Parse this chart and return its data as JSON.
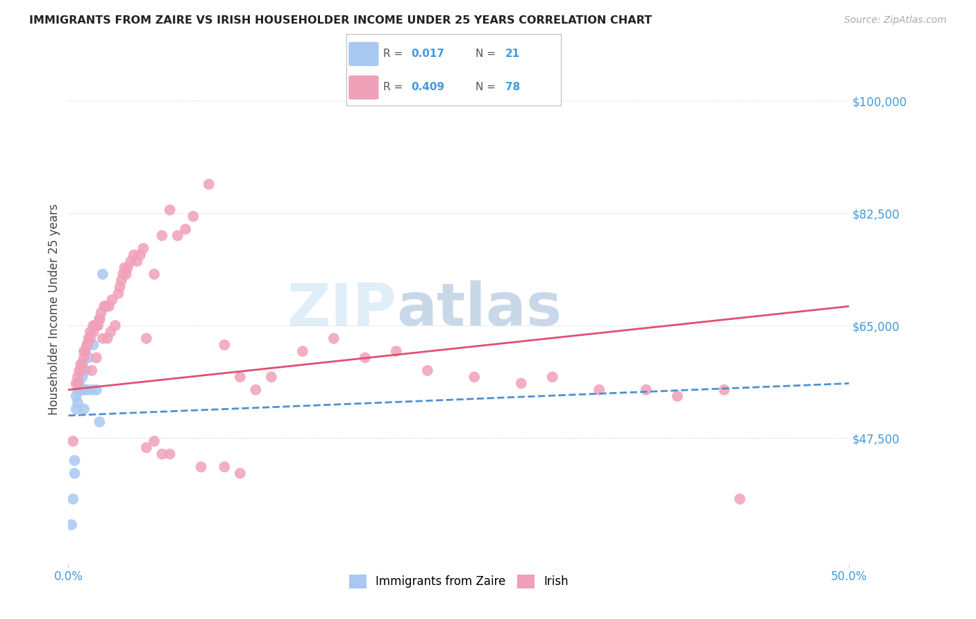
{
  "title": "IMMIGRANTS FROM ZAIRE VS IRISH HOUSEHOLDER INCOME UNDER 25 YEARS CORRELATION CHART",
  "source": "Source: ZipAtlas.com",
  "ylabel": "Householder Income Under 25 years",
  "right_ytick_labels": [
    "$100,000",
    "$82,500",
    "$65,000",
    "$47,500"
  ],
  "right_ytick_values": [
    100000,
    82500,
    65000,
    47500
  ],
  "ylim": [
    28000,
    107000
  ],
  "xlim": [
    0.0,
    0.5
  ],
  "color_blue": "#a8c8f0",
  "color_pink": "#f0a0b8",
  "color_blue_line": "#5090d0",
  "color_pink_line": "#e05070",
  "color_axis_text": "#4499dd",
  "watermark_zip": "ZIP",
  "watermark_atlas": "atlas",
  "legend_label_blue": "Immigrants from Zaire",
  "legend_label_pink": "Irish",
  "blue_line_x": [
    0.0,
    0.5
  ],
  "blue_line_y": [
    51000,
    56000
  ],
  "pink_line_x": [
    0.0,
    0.5
  ],
  "pink_line_y": [
    55000,
    68000
  ],
  "blue_points_x": [
    0.002,
    0.003,
    0.004,
    0.004,
    0.005,
    0.005,
    0.006,
    0.006,
    0.007,
    0.008,
    0.009,
    0.01,
    0.01,
    0.011,
    0.012,
    0.013,
    0.015,
    0.016,
    0.018,
    0.02,
    0.022
  ],
  "blue_points_y": [
    34000,
    38000,
    42000,
    44000,
    52000,
    54000,
    53000,
    55000,
    56000,
    55000,
    57000,
    52000,
    55000,
    58000,
    55000,
    60000,
    55000,
    62000,
    55000,
    50000,
    73000
  ],
  "pink_points_x": [
    0.003,
    0.005,
    0.006,
    0.006,
    0.007,
    0.008,
    0.008,
    0.009,
    0.01,
    0.01,
    0.011,
    0.012,
    0.012,
    0.013,
    0.014,
    0.014,
    0.015,
    0.016,
    0.016,
    0.017,
    0.018,
    0.018,
    0.019,
    0.02,
    0.02,
    0.021,
    0.022,
    0.023,
    0.024,
    0.025,
    0.026,
    0.027,
    0.028,
    0.03,
    0.032,
    0.033,
    0.034,
    0.035,
    0.036,
    0.037,
    0.038,
    0.04,
    0.042,
    0.044,
    0.046,
    0.048,
    0.05,
    0.055,
    0.06,
    0.065,
    0.07,
    0.075,
    0.08,
    0.09,
    0.1,
    0.11,
    0.12,
    0.13,
    0.15,
    0.17,
    0.19,
    0.21,
    0.23,
    0.26,
    0.29,
    0.31,
    0.34,
    0.37,
    0.39,
    0.42,
    0.05,
    0.055,
    0.06,
    0.065,
    0.085,
    0.1,
    0.11,
    0.43
  ],
  "pink_points_y": [
    47000,
    56000,
    56000,
    57000,
    58000,
    58000,
    59000,
    59000,
    60000,
    61000,
    61000,
    62000,
    62000,
    63000,
    63000,
    64000,
    58000,
    64000,
    65000,
    65000,
    60000,
    65000,
    65000,
    66000,
    66000,
    67000,
    63000,
    68000,
    68000,
    63000,
    68000,
    64000,
    69000,
    65000,
    70000,
    71000,
    72000,
    73000,
    74000,
    73000,
    74000,
    75000,
    76000,
    75000,
    76000,
    77000,
    63000,
    73000,
    79000,
    83000,
    79000,
    80000,
    82000,
    87000,
    62000,
    57000,
    55000,
    57000,
    61000,
    63000,
    60000,
    61000,
    58000,
    57000,
    56000,
    57000,
    55000,
    55000,
    54000,
    55000,
    46000,
    47000,
    45000,
    45000,
    43000,
    43000,
    42000,
    38000
  ]
}
